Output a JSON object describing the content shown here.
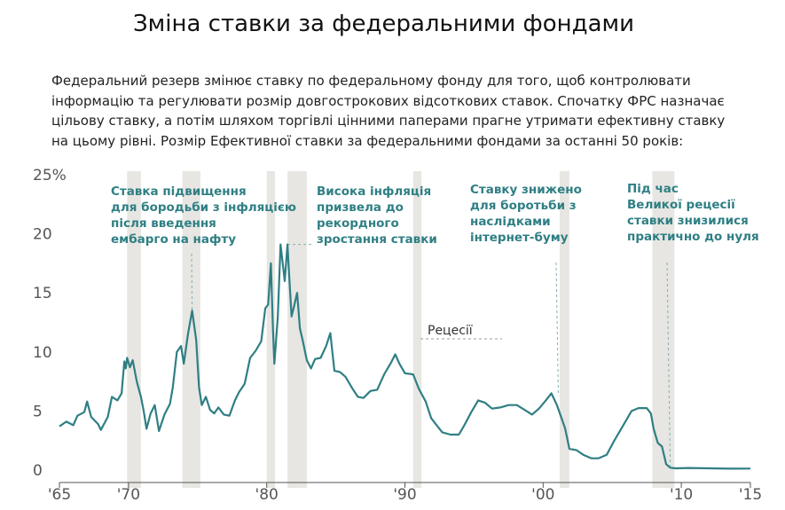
{
  "header": {
    "title": "Зміна ставки за федеральними фондами",
    "intro": "Федеральний резерв змінює ставку по федеральному фонду для того, щоб контролювати інформацію та регулювати розмір довгострокових відсоткових ставок. Спочатку ФРС назначає цільову ставку, а потім шляхом торгівлі цінними паперами прагне утримати ефективну ставку на цьому рівні. Розмір Ефективної ставки за федеральними фондами за останні 50 років:"
  },
  "chart_data": {
    "type": "line",
    "title": "",
    "xlabel": "",
    "ylabel": "",
    "xlim": [
      1965,
      2015
    ],
    "ylim": [
      0,
      25
    ],
    "grid": false,
    "x_ticks": [
      {
        "value": 1965,
        "label": "'65"
      },
      {
        "value": 1970,
        "label": "'70"
      },
      {
        "value": 1980,
        "label": "'80"
      },
      {
        "value": 1990,
        "label": "'90"
      },
      {
        "value": 2000,
        "label": "'00"
      },
      {
        "value": 2010,
        "label": "'10"
      },
      {
        "value": 2015,
        "label": "'15"
      }
    ],
    "y_ticks": [
      {
        "value": 0,
        "label": "0"
      },
      {
        "value": 5,
        "label": "5"
      },
      {
        "value": 10,
        "label": "10"
      },
      {
        "value": 15,
        "label": "15"
      },
      {
        "value": 20,
        "label": "20"
      },
      {
        "value": 25,
        "label": "25%"
      }
    ],
    "recessions": [
      [
        1969.9,
        1970.9
      ],
      [
        1973.9,
        1975.2
      ],
      [
        1980.0,
        1980.6
      ],
      [
        1981.5,
        1982.9
      ],
      [
        1990.6,
        1991.2
      ],
      [
        2001.2,
        2001.9
      ],
      [
        2007.9,
        2009.5
      ]
    ],
    "recession_label": "Рецесії",
    "series": [
      {
        "color": "#2f7f84",
        "points": [
          [
            1965.0,
            3.7
          ],
          [
            1965.5,
            4.1
          ],
          [
            1966.0,
            3.8
          ],
          [
            1966.3,
            4.6
          ],
          [
            1966.8,
            4.9
          ],
          [
            1967.0,
            5.8
          ],
          [
            1967.3,
            4.5
          ],
          [
            1967.8,
            3.9
          ],
          [
            1968.0,
            3.4
          ],
          [
            1968.5,
            4.5
          ],
          [
            1968.8,
            6.2
          ],
          [
            1969.2,
            5.9
          ],
          [
            1969.5,
            6.5
          ],
          [
            1969.7,
            9.2
          ],
          [
            1969.8,
            8.6
          ],
          [
            1969.9,
            9.5
          ],
          [
            1970.1,
            8.7
          ],
          [
            1970.3,
            9.3
          ],
          [
            1970.6,
            7.5
          ],
          [
            1970.9,
            6.2
          ],
          [
            1971.1,
            5.0
          ],
          [
            1971.3,
            3.5
          ],
          [
            1971.6,
            4.8
          ],
          [
            1971.9,
            5.5
          ],
          [
            1972.2,
            3.3
          ],
          [
            1972.6,
            4.7
          ],
          [
            1973.0,
            5.6
          ],
          [
            1973.2,
            7.0
          ],
          [
            1973.5,
            10.0
          ],
          [
            1973.8,
            10.5
          ],
          [
            1974.0,
            9.0
          ],
          [
            1974.3,
            11.5
          ],
          [
            1974.6,
            13.5
          ],
          [
            1974.9,
            11.0
          ],
          [
            1975.1,
            7.0
          ],
          [
            1975.3,
            5.5
          ],
          [
            1975.6,
            6.2
          ],
          [
            1975.9,
            5.1
          ],
          [
            1976.2,
            4.8
          ],
          [
            1976.5,
            5.3
          ],
          [
            1976.9,
            4.7
          ],
          [
            1977.3,
            4.6
          ],
          [
            1977.7,
            5.9
          ],
          [
            1978.0,
            6.6
          ],
          [
            1978.4,
            7.3
          ],
          [
            1978.8,
            9.5
          ],
          [
            1979.2,
            10.1
          ],
          [
            1979.6,
            10.9
          ],
          [
            1979.9,
            13.7
          ],
          [
            1980.1,
            14.0
          ],
          [
            1980.3,
            17.5
          ],
          [
            1980.45,
            12.0
          ],
          [
            1980.55,
            9.0
          ],
          [
            1980.8,
            13.0
          ],
          [
            1981.0,
            19.1
          ],
          [
            1981.3,
            16.0
          ],
          [
            1981.5,
            19.1
          ],
          [
            1981.6,
            17.0
          ],
          [
            1981.8,
            13.0
          ],
          [
            1982.0,
            14.0
          ],
          [
            1982.2,
            15.0
          ],
          [
            1982.4,
            12.0
          ],
          [
            1982.6,
            11.0
          ],
          [
            1982.9,
            9.3
          ],
          [
            1983.2,
            8.6
          ],
          [
            1983.5,
            9.4
          ],
          [
            1983.9,
            9.5
          ],
          [
            1984.3,
            10.5
          ],
          [
            1984.6,
            11.6
          ],
          [
            1984.9,
            8.4
          ],
          [
            1985.3,
            8.3
          ],
          [
            1985.7,
            7.9
          ],
          [
            1986.2,
            6.9
          ],
          [
            1986.6,
            6.2
          ],
          [
            1987.0,
            6.1
          ],
          [
            1987.5,
            6.7
          ],
          [
            1988.0,
            6.8
          ],
          [
            1988.5,
            8.1
          ],
          [
            1989.0,
            9.1
          ],
          [
            1989.3,
            9.8
          ],
          [
            1989.6,
            9.0
          ],
          [
            1990.0,
            8.2
          ],
          [
            1990.6,
            8.1
          ],
          [
            1991.0,
            6.9
          ],
          [
            1991.5,
            5.8
          ],
          [
            1991.9,
            4.4
          ],
          [
            1992.3,
            3.8
          ],
          [
            1992.7,
            3.2
          ],
          [
            1993.3,
            3.0
          ],
          [
            1993.9,
            3.0
          ],
          [
            1994.3,
            3.8
          ],
          [
            1994.8,
            4.9
          ],
          [
            1995.3,
            5.9
          ],
          [
            1995.8,
            5.7
          ],
          [
            1996.3,
            5.2
          ],
          [
            1996.9,
            5.3
          ],
          [
            1997.5,
            5.5
          ],
          [
            1998.1,
            5.5
          ],
          [
            1998.8,
            5.0
          ],
          [
            1999.2,
            4.7
          ],
          [
            1999.7,
            5.2
          ],
          [
            2000.2,
            5.9
          ],
          [
            2000.6,
            6.5
          ],
          [
            2001.0,
            5.5
          ],
          [
            2001.3,
            4.5
          ],
          [
            2001.6,
            3.5
          ],
          [
            2001.9,
            1.8
          ],
          [
            2002.4,
            1.7
          ],
          [
            2002.9,
            1.3
          ],
          [
            2003.5,
            1.0
          ],
          [
            2004.0,
            1.0
          ],
          [
            2004.6,
            1.3
          ],
          [
            2005.2,
            2.6
          ],
          [
            2005.8,
            3.8
          ],
          [
            2006.4,
            5.0
          ],
          [
            2006.9,
            5.25
          ],
          [
            2007.5,
            5.25
          ],
          [
            2007.8,
            4.8
          ],
          [
            2008.0,
            3.5
          ],
          [
            2008.3,
            2.3
          ],
          [
            2008.6,
            2.0
          ],
          [
            2008.9,
            0.5
          ],
          [
            2009.2,
            0.2
          ],
          [
            2009.6,
            0.15
          ],
          [
            2010.5,
            0.18
          ],
          [
            2012.0,
            0.15
          ],
          [
            2013.5,
            0.12
          ],
          [
            2015.0,
            0.13
          ]
        ]
      }
    ],
    "annotations": [
      {
        "lines": [
          "Ставка підвищення",
          "для бородьби з інфляцією",
          "після введення",
          "ембарго на нафту"
        ],
        "x": 1974.6,
        "y": 13.5
      },
      {
        "lines": [
          "Висока інфляція",
          "призвела до",
          "рекордного",
          "зростання ставки"
        ],
        "x": 1981.5,
        "y": 19.1
      },
      {
        "lines": [
          "Ставку знижено",
          "для боротьби з",
          "наслідками",
          "інтернет-буму"
        ],
        "x": 2001.1,
        "y": 6.5
      },
      {
        "lines": [
          "Під час",
          "Великої рецесії",
          "ставки знизилися",
          "практично до нуля"
        ],
        "x": 2009.2,
        "y": 0.2
      }
    ]
  }
}
